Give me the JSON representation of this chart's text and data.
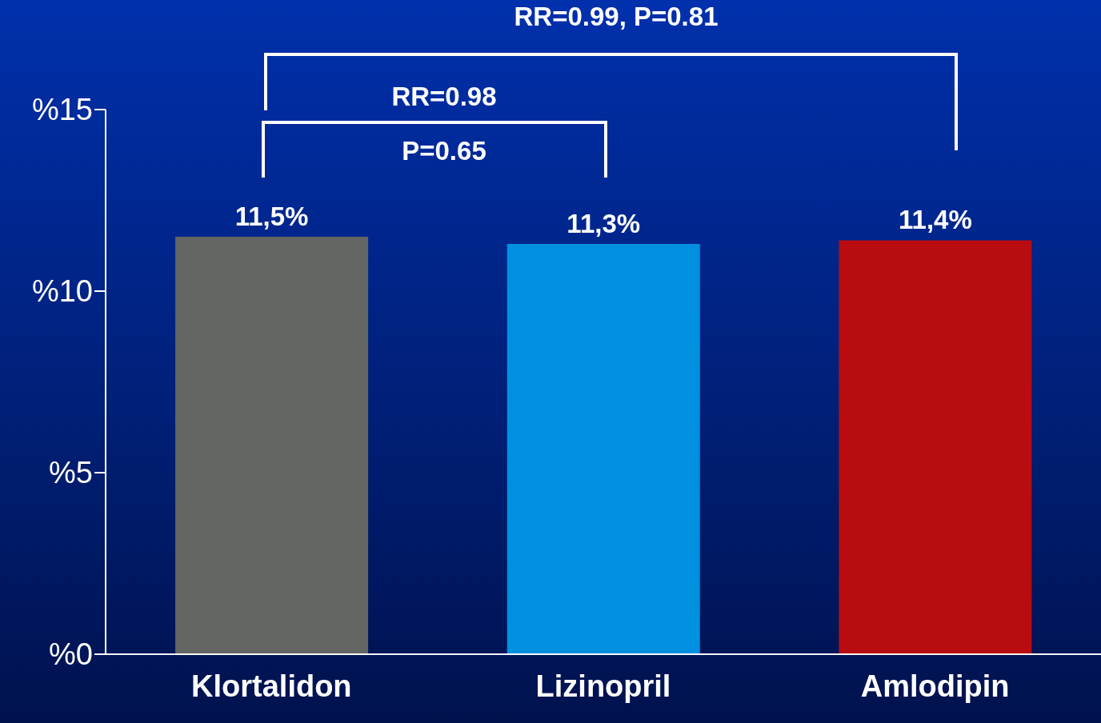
{
  "chart_data": {
    "type": "bar",
    "categories": [
      "Klortalidon",
      "Lizinopril",
      "Amlodipin"
    ],
    "values": [
      11.5,
      11.3,
      11.4
    ],
    "colors": [
      "#636563",
      "#0090e0",
      "#b80c10"
    ],
    "value_labels": [
      "11,5%",
      "11,3%",
      "11,4%"
    ],
    "ylim": [
      0,
      15
    ],
    "yticks": [
      {
        "value": 0,
        "label": "%0"
      },
      {
        "value": 5,
        "label": "%5"
      },
      {
        "value": 10,
        "label": "%10"
      },
      {
        "value": 15,
        "label": "%15"
      }
    ],
    "annotations": [
      "RR=0.99, P=0.81",
      "RR=0.98",
      "P=0.65"
    ],
    "grid": false,
    "legend": false
  }
}
